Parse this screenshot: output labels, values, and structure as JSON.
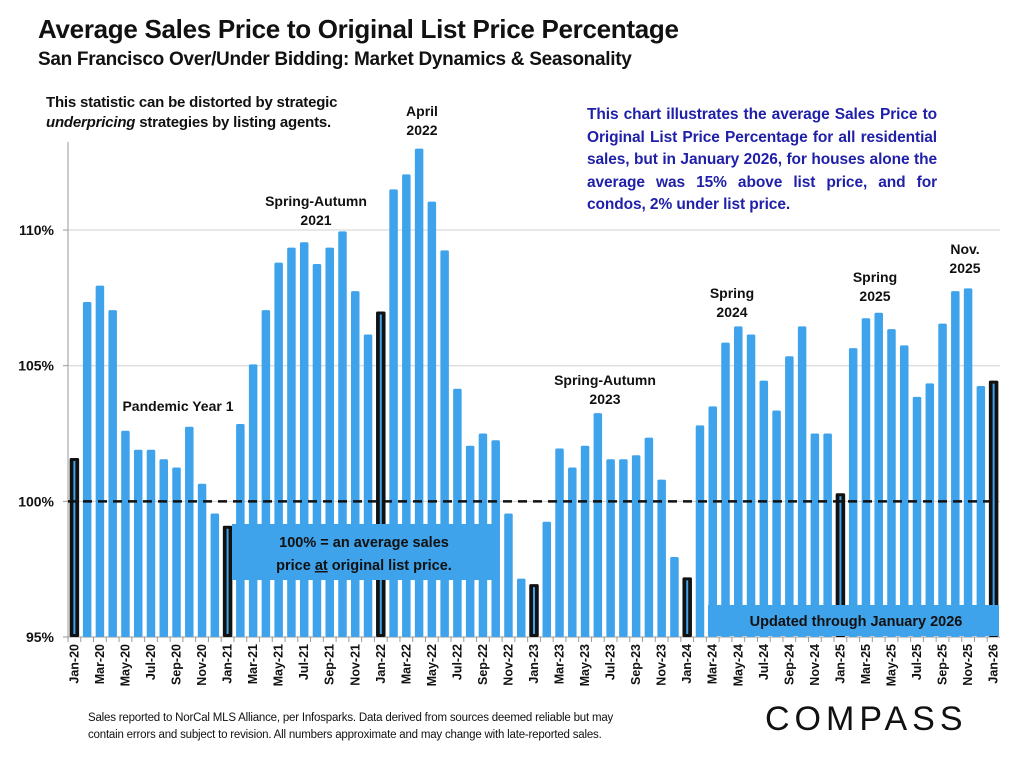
{
  "header": {
    "title": "Average Sales Price to Original List Price Percentage",
    "subtitle": "San Francisco Over/Under Bidding: Market Dynamics & Seasonality"
  },
  "caveat": {
    "line1": "This statistic can be distorted by strategic",
    "line2_italic": "underpricing",
    "line2_rest": " strategies by listing agents."
  },
  "note": "This chart illustrates the average Sales Price to Original List Price Percentage for all residential sales, but in January 2026, for houses alone the average was 15% above list price, and for condos, 2% under list price.",
  "footer": {
    "line1": "Sales reported to NorCal MLS Alliance, per Infosparks. Data derived from sources deemed reliable but may",
    "line2": "contain errors and subject to revision. All numbers approximate and may change with late-reported sales."
  },
  "logo": "COMPASS",
  "colors": {
    "bar": "#3ea3ea",
    "january_bar": "#111111",
    "reference_line": "#111111",
    "note_text": "#1f1fa8",
    "grid": "#d0d0d0"
  },
  "chart_data": {
    "type": "bar",
    "title": "Average Sales Price to Original List Price Percentage",
    "xlabel": "",
    "ylabel": "",
    "ylim": [
      95,
      113.9
    ],
    "yticks": [
      95,
      100,
      105,
      110
    ],
    "ytick_labels": [
      "95%",
      "100%",
      "105%",
      "110%"
    ],
    "grid": true,
    "reference_line": {
      "value": 100,
      "style": "dashed"
    },
    "highlight_rule": "January bars drawn black with blue inner stripe",
    "categories": [
      "Jan-20",
      "Feb-20",
      "Mar-20",
      "Apr-20",
      "May-20",
      "Jun-20",
      "Jul-20",
      "Aug-20",
      "Sep-20",
      "Oct-20",
      "Nov-20",
      "Dec-20",
      "Jan-21",
      "Feb-21",
      "Mar-21",
      "Apr-21",
      "May-21",
      "Jun-21",
      "Jul-21",
      "Aug-21",
      "Sep-21",
      "Oct-21",
      "Nov-21",
      "Dec-21",
      "Jan-22",
      "Feb-22",
      "Mar-22",
      "Apr-22",
      "May-22",
      "Jun-22",
      "Jul-22",
      "Aug-22",
      "Sep-22",
      "Oct-22",
      "Nov-22",
      "Dec-22",
      "Jan-23",
      "Feb-23",
      "Mar-23",
      "Apr-23",
      "May-23",
      "Jun-23",
      "Jul-23",
      "Aug-23",
      "Sep-23",
      "Oct-23",
      "Nov-23",
      "Dec-23",
      "Jan-24",
      "Feb-24",
      "Mar-24",
      "Apr-24",
      "May-24",
      "Jun-24",
      "Jul-24",
      "Aug-24",
      "Sep-24",
      "Oct-24",
      "Nov-24",
      "Dec-24",
      "Jan-25",
      "Feb-25",
      "Mar-25",
      "Apr-25",
      "May-25",
      "Jun-25",
      "Jul-25",
      "Aug-25",
      "Sep-25",
      "Oct-25",
      "Nov-25",
      "Dec-25",
      "Jan-26"
    ],
    "values": [
      101.6,
      107.35,
      107.95,
      107.05,
      102.6,
      101.9,
      101.9,
      101.55,
      101.25,
      102.75,
      100.65,
      99.55,
      99.1,
      102.85,
      105.05,
      107.05,
      108.8,
      109.35,
      109.55,
      108.75,
      109.35,
      109.95,
      107.75,
      106.15,
      107.0,
      111.5,
      112.05,
      113.0,
      111.05,
      109.25,
      104.15,
      102.05,
      102.5,
      102.25,
      99.55,
      97.15,
      96.95,
      99.25,
      101.95,
      101.25,
      102.05,
      103.25,
      101.55,
      101.55,
      101.7,
      102.35,
      100.8,
      97.95,
      97.2,
      102.8,
      103.5,
      105.85,
      106.45,
      106.15,
      104.45,
      103.35,
      105.35,
      106.45,
      102.5,
      102.5,
      100.3,
      105.65,
      106.75,
      106.95,
      106.35,
      105.75,
      103.85,
      104.35,
      106.55,
      107.75,
      107.85,
      104.25,
      104.45
    ],
    "annotations": [
      {
        "text": [
          "Pandemic Year 1"
        ],
        "near": "Oct-20"
      },
      {
        "text": [
          "Spring-Autumn",
          "2021"
        ],
        "near": "Jul-21"
      },
      {
        "text": [
          "April",
          "2022"
        ],
        "near": "Apr-22"
      },
      {
        "text": [
          "Spring-Autumn",
          "2023"
        ],
        "near": "Jun-23"
      },
      {
        "text": [
          "Spring",
          "2024"
        ],
        "near": "May-24"
      },
      {
        "text": [
          "Spring",
          "2025"
        ],
        "near": "Apr-25"
      },
      {
        "text": [
          "Nov.",
          "2025"
        ],
        "near": "Nov-25"
      }
    ],
    "callouts": {
      "reference": [
        "100% = an average sales",
        "price ",
        "at",
        " original list price."
      ],
      "updated": "Updated through January 2026"
    }
  }
}
